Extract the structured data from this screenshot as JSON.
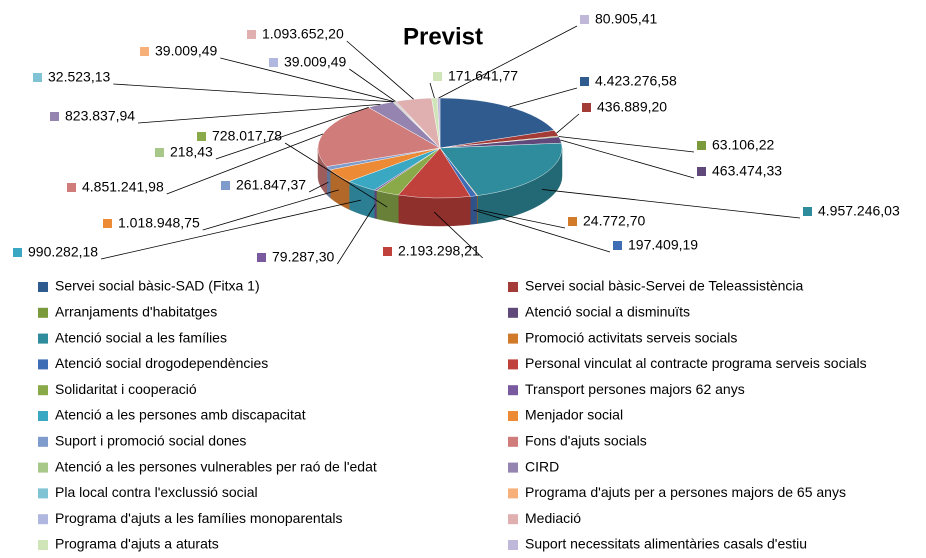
{
  "chart_data": {
    "type": "pie3d",
    "title": "Previst",
    "categories": [
      "Servei social bàsic-SAD (Fitxa 1)",
      "Servei social bàsic-Servei de Teleassistència",
      "Arranjaments d'habitatges",
      "Atenció social a disminuïts",
      "Atenció social a les famílies",
      "Promoció activitats serveis socials",
      "Atenció social drogodependències",
      "Personal vinculat al contracte programa serveis socials",
      "Solidaritat i cooperació",
      "Transport persones majors 62 anys",
      "Atenció a les persones amb discapacitat",
      "Menjador social",
      "Suport i promoció social dones",
      "Fons d'ajuts socials",
      "Atenció a les persones vulnerables per raó de l'edat",
      "CIRD",
      "Pla local contra l'exclussió social",
      "Programa d'ajuts per a persones majors de 65 anys",
      "Programa d'ajuts a les famílies monoparentals",
      "Mediació",
      "Programa d'ajuts a aturats",
      "Suport necessitats alimentàries casals d'estiu"
    ],
    "values": [
      4423276.58,
      436889.2,
      63106.22,
      463474.33,
      4957246.03,
      24772.7,
      197409.19,
      2193298.21,
      728017.78,
      79287.3,
      990282.18,
      1018948.75,
      261847.37,
      4851241.98,
      218.43,
      823837.94,
      32523.13,
      39009.49,
      39009.49,
      1093652.2,
      171641.77,
      80905.41
    ],
    "value_labels": [
      "4.423.276,58",
      "436.889,20",
      "63.106,22",
      "463.474,33",
      "4.957.246,03",
      "24.772,70",
      "197.409,19",
      "2.193.298,21",
      "728.017,78",
      "79.287,30",
      "990.282,18",
      "1.018.948,75",
      "261.847,37",
      "4.851.241,98",
      "218,43",
      "823.837,94",
      "32.523,13",
      "39.009,49",
      "39.009,49",
      "1.093.652,20",
      "171.641,77",
      "80.905,41"
    ],
    "colors": [
      "#2f5b8f",
      "#a33b36",
      "#7a9a3c",
      "#60497a",
      "#2f8c9c",
      "#d07a2a",
      "#3e6db5",
      "#c0403b",
      "#8aaa4a",
      "#7a5a9e",
      "#3aa8c2",
      "#ec8a35",
      "#7f9ccc",
      "#d07c7a",
      "#a8c88a",
      "#9583b0",
      "#7fc3d4",
      "#f7b07a",
      "#b0b8e0",
      "#e0b0b0",
      "#cfe5b8",
      "#c0b8d8"
    ],
    "legend": "bottom"
  }
}
